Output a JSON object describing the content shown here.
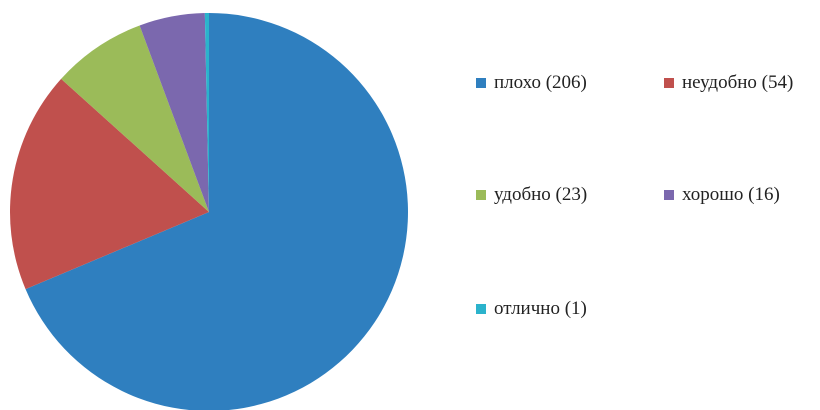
{
  "chart_data": {
    "type": "pie",
    "title": "",
    "categories": [
      "плохо (206)",
      "неудобно (54)",
      "удобно (23)",
      "хорошо (16)",
      "отлично (1)"
    ],
    "values": [
      206,
      54,
      23,
      16,
      1
    ],
    "colors": [
      "#2f7fbf",
      "#c0504d",
      "#9bbb59",
      "#7b68ae",
      "#2bb3cc"
    ],
    "start_angle_deg": 0,
    "direction": "clockwise",
    "legend_position": "right"
  }
}
